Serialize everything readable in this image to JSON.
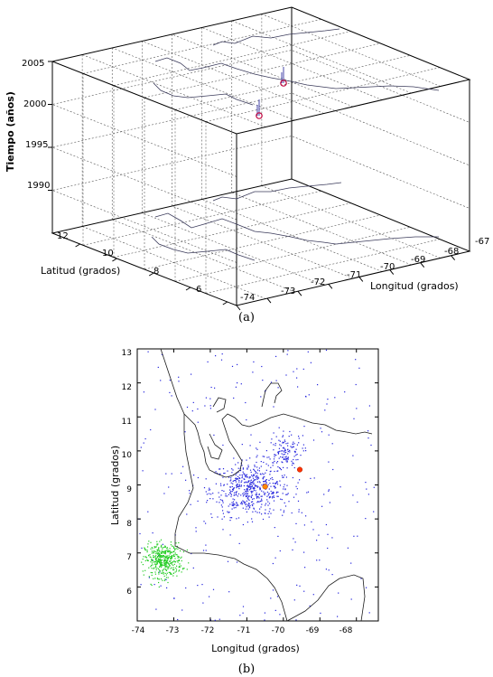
{
  "figure_a": {
    "caption": "(a)",
    "chart_data": {
      "type": "scatter",
      "zlabel": "Tiempo (años)",
      "ylabel": "Latitud (grados)",
      "xlabel": "Longitud (grados)",
      "zticks": [
        "2005",
        "2000",
        "1995",
        "1990"
      ],
      "yticks": [
        "12",
        "10",
        "8",
        "6"
      ],
      "xticks": [
        "-74",
        "-73",
        "-72",
        "-71",
        "-70",
        "-69",
        "-68",
        "-67"
      ],
      "grid": true,
      "events": [
        {
          "lon": -70.8,
          "lat": 9.0,
          "year": 1996.5,
          "color": "#c0003a"
        },
        {
          "lon": -69.6,
          "lat": 10.3,
          "year": 2001.5,
          "color": "#c0003a"
        }
      ]
    }
  },
  "figure_b": {
    "caption": "(b)",
    "chart_data": {
      "type": "scatter",
      "xlabel": "Longitud (grados)",
      "ylabel": "Latitud (grados)",
      "xlim": [
        -74,
        -67.4
      ],
      "ylim": [
        5,
        13
      ],
      "xticks": [
        "-74",
        "-73",
        "-72",
        "-71",
        "-70",
        "-69",
        "-68"
      ],
      "yticks": [
        "13",
        "12",
        "11",
        "10",
        "9",
        "8",
        "7",
        "6"
      ],
      "series": [
        {
          "color": "#2222dd",
          "region": "background",
          "lon_range": [
            -74,
            -67.5
          ],
          "lat_range": [
            5,
            13
          ],
          "count": 260
        },
        {
          "color": "#2222dd",
          "region": "Andean belt",
          "center": [
            -70.9,
            8.9
          ],
          "spread": [
            0.55,
            0.4
          ],
          "count": 520
        },
        {
          "color": "#2222dd",
          "region": "north cluster",
          "center": [
            -70.0,
            10.0
          ],
          "spread": [
            0.25,
            0.25
          ],
          "count": 120
        },
        {
          "color": "#22cc22",
          "region": "south-west cluster",
          "center": [
            -73.3,
            6.8
          ],
          "spread": [
            0.25,
            0.25
          ],
          "count": 420
        }
      ],
      "markers": [
        {
          "lon": -70.5,
          "lat": 8.95,
          "color": "#ff8800"
        },
        {
          "lon": -69.55,
          "lat": 9.45,
          "color": "#ff3300"
        }
      ]
    }
  }
}
